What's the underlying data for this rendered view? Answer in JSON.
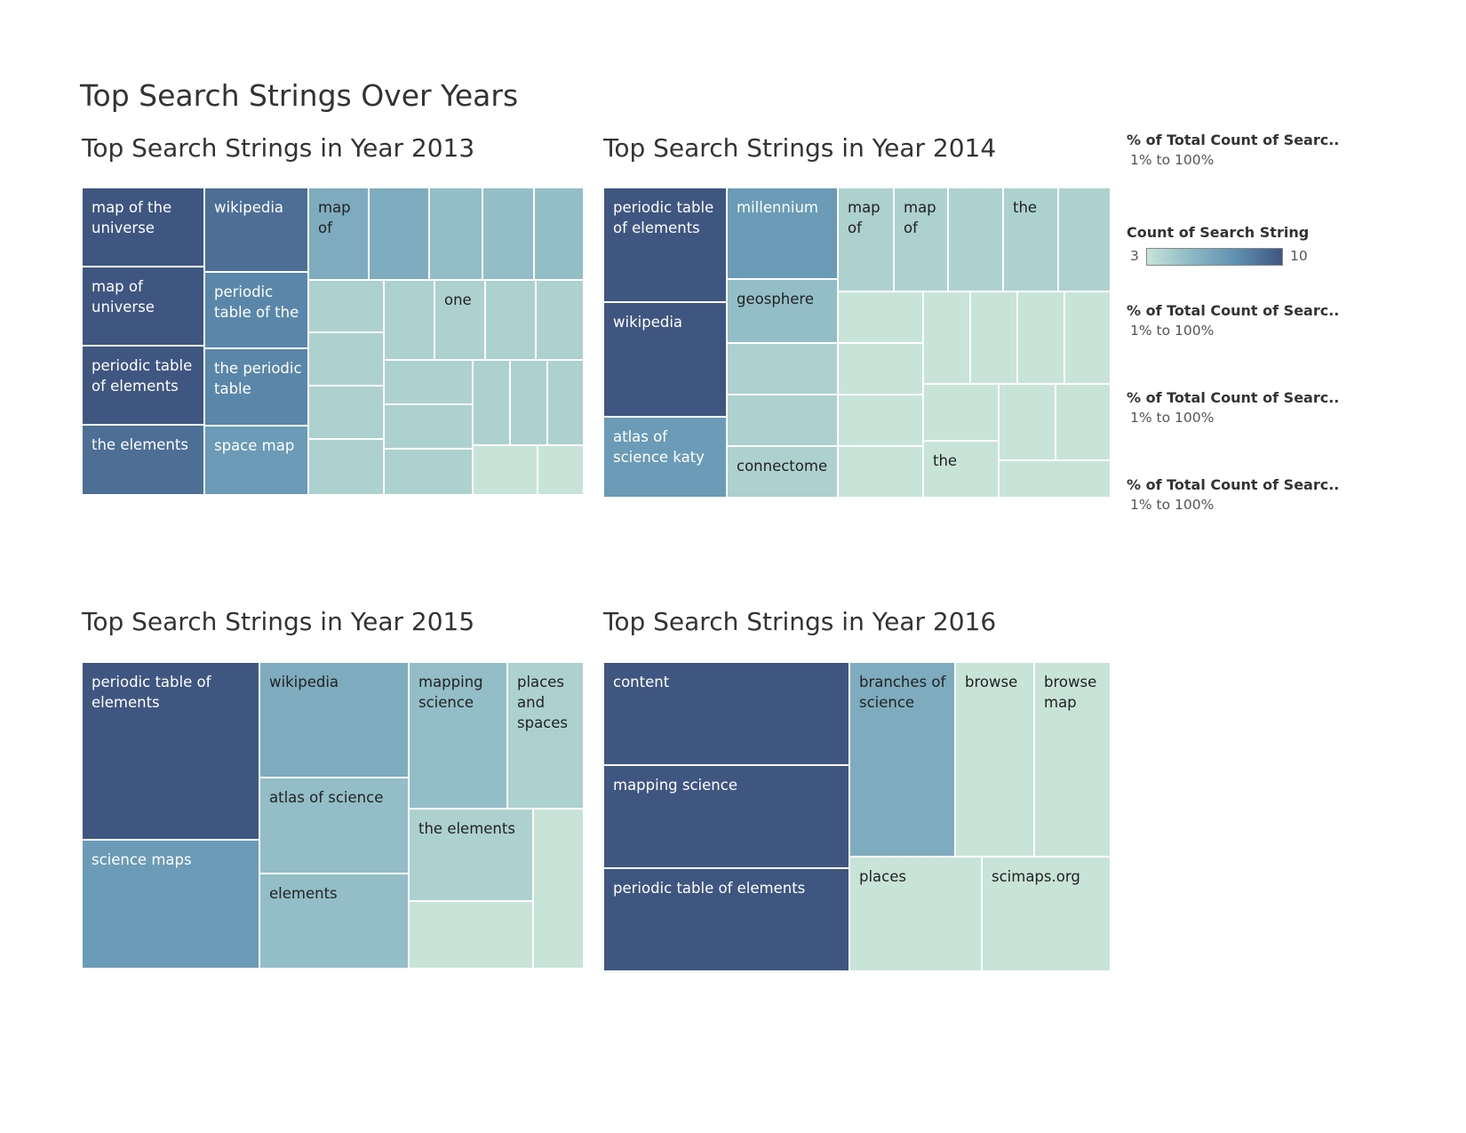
{
  "title": "Top Search Strings Over Years",
  "legend": {
    "pct_title": "% of Total Count of Searc..",
    "pct_range": "1% to 100%",
    "count_title": "Count of Search String",
    "count_min": "3",
    "count_max": "10",
    "colors": {
      "low": "#c8e4d8",
      "mid_low": "#8ab8c4",
      "mid_high": "#5f8fb0",
      "high": "#3f5680"
    }
  },
  "chart_data": [
    {
      "type": "treemap",
      "title": "Top Search Strings in Year 2013",
      "color_scale": {
        "label": "Count of Search String",
        "min": 3,
        "max": 10
      },
      "tiles": [
        {
          "label": "map of the universe",
          "count": 10
        },
        {
          "label": "map of universe",
          "count": 10
        },
        {
          "label": "periodic table of elements",
          "count": 10
        },
        {
          "label": "the elements",
          "count": 9
        },
        {
          "label": "wikipedia",
          "count": 9
        },
        {
          "label": "periodic table of the",
          "count": 8
        },
        {
          "label": "the periodic table",
          "count": 8
        },
        {
          "label": "space map",
          "count": 7
        },
        {
          "label": "map of",
          "count": 6
        },
        {
          "label": "",
          "count": 6
        },
        {
          "label": "",
          "count": 5
        },
        {
          "label": "",
          "count": 5
        },
        {
          "label": "",
          "count": 5
        },
        {
          "label": "",
          "count": 4
        },
        {
          "label": "",
          "count": 4
        },
        {
          "label": "one",
          "count": 4
        },
        {
          "label": "",
          "count": 4
        },
        {
          "label": "",
          "count": 4
        },
        {
          "label": "",
          "count": 4
        },
        {
          "label": "",
          "count": 4
        },
        {
          "label": "",
          "count": 4
        },
        {
          "label": "",
          "count": 4
        },
        {
          "label": "",
          "count": 4
        },
        {
          "label": "",
          "count": 4
        },
        {
          "label": "",
          "count": 4
        },
        {
          "label": "",
          "count": 4
        },
        {
          "label": "",
          "count": 4
        },
        {
          "label": "",
          "count": 3
        },
        {
          "label": "",
          "count": 3
        }
      ]
    },
    {
      "type": "treemap",
      "title": "Top Search Strings in Year 2014",
      "color_scale": {
        "label": "Count of Search String",
        "min": 3,
        "max": 10
      },
      "tiles": [
        {
          "label": "periodic table of elements",
          "count": 10
        },
        {
          "label": "wikipedia",
          "count": 10
        },
        {
          "label": "atlas of science katy",
          "count": 7
        },
        {
          "label": "millennium",
          "count": 7
        },
        {
          "label": "geosphere",
          "count": 5
        },
        {
          "label": "",
          "count": 4
        },
        {
          "label": "",
          "count": 4
        },
        {
          "label": "connectome",
          "count": 4
        },
        {
          "label": "map of",
          "count": 4
        },
        {
          "label": "map of",
          "count": 4
        },
        {
          "label": "",
          "count": 4
        },
        {
          "label": "the",
          "count": 4
        },
        {
          "label": "",
          "count": 4
        },
        {
          "label": "",
          "count": 3
        },
        {
          "label": "",
          "count": 3
        },
        {
          "label": "",
          "count": 3
        },
        {
          "label": "",
          "count": 3
        },
        {
          "label": "",
          "count": 3
        },
        {
          "label": "",
          "count": 3
        },
        {
          "label": "",
          "count": 3
        },
        {
          "label": "",
          "count": 3
        },
        {
          "label": "",
          "count": 3
        },
        {
          "label": "the",
          "count": 3
        },
        {
          "label": "",
          "count": 3
        },
        {
          "label": "",
          "count": 3
        },
        {
          "label": "",
          "count": 3
        }
      ]
    },
    {
      "type": "treemap",
      "title": "Top Search Strings in Year 2015",
      "color_scale": {
        "label": "Count of Search String",
        "min": 3,
        "max": 10
      },
      "tiles": [
        {
          "label": "periodic table of elements",
          "count": 10
        },
        {
          "label": "science maps",
          "count": 7
        },
        {
          "label": "wikipedia",
          "count": 6
        },
        {
          "label": "atlas of science",
          "count": 5
        },
        {
          "label": "elements",
          "count": 5
        },
        {
          "label": "mapping science",
          "count": 5
        },
        {
          "label": "places and spaces",
          "count": 4
        },
        {
          "label": "the elements",
          "count": 4
        },
        {
          "label": "",
          "count": 3
        },
        {
          "label": "",
          "count": 3
        }
      ]
    },
    {
      "type": "treemap",
      "title": "Top Search Strings in Year 2016",
      "color_scale": {
        "label": "Count of Search String",
        "min": 3,
        "max": 10
      },
      "tiles": [
        {
          "label": "content",
          "count": 10
        },
        {
          "label": "mapping science",
          "count": 10
        },
        {
          "label": "periodic table of elements",
          "count": 10
        },
        {
          "label": "branches of science",
          "count": 6
        },
        {
          "label": "browse",
          "count": 3
        },
        {
          "label": "browse map",
          "count": 3
        },
        {
          "label": "places",
          "count": 3
        },
        {
          "label": "scimaps.org",
          "count": 3
        }
      ]
    }
  ]
}
